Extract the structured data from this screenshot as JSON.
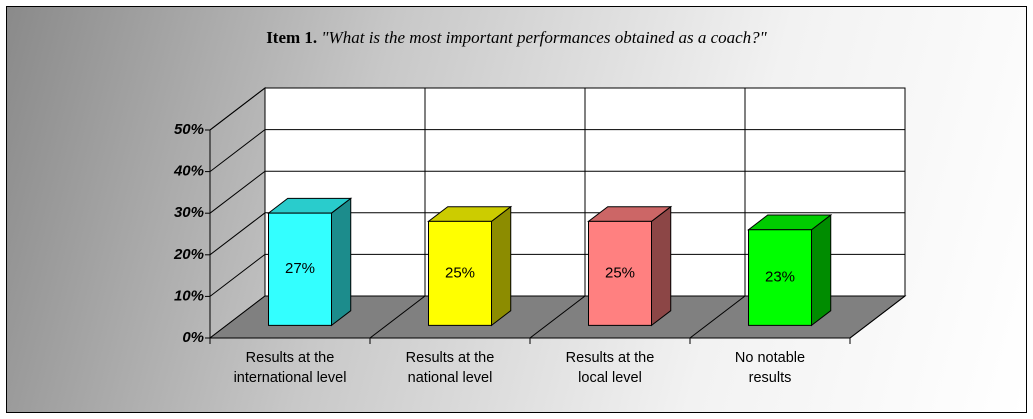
{
  "chart_data": {
    "type": "bar3d",
    "title_label": "Item 1.",
    "title": "\"What is the most important performances obtained as a coach?\"",
    "categories": [
      "Results at the\ninternational level",
      "Results at the\nnational level",
      "Results at the\nlocal level",
      "No notable\nresults"
    ],
    "values": [
      27,
      25,
      25,
      23
    ],
    "value_labels": [
      "27%",
      "25%",
      "25%",
      "23%"
    ],
    "colors": [
      "#33ffff",
      "#ffff00",
      "#ff8080",
      "#00ff00"
    ],
    "ylim": [
      0,
      50
    ],
    "yticks": [
      {
        "value": 0,
        "label": "0%"
      },
      {
        "value": 10,
        "label": "10%"
      },
      {
        "value": 20,
        "label": "20%"
      },
      {
        "value": 30,
        "label": "30%"
      },
      {
        "value": 40,
        "label": "40%"
      },
      {
        "value": 50,
        "label": "50%"
      }
    ],
    "grid": true
  }
}
